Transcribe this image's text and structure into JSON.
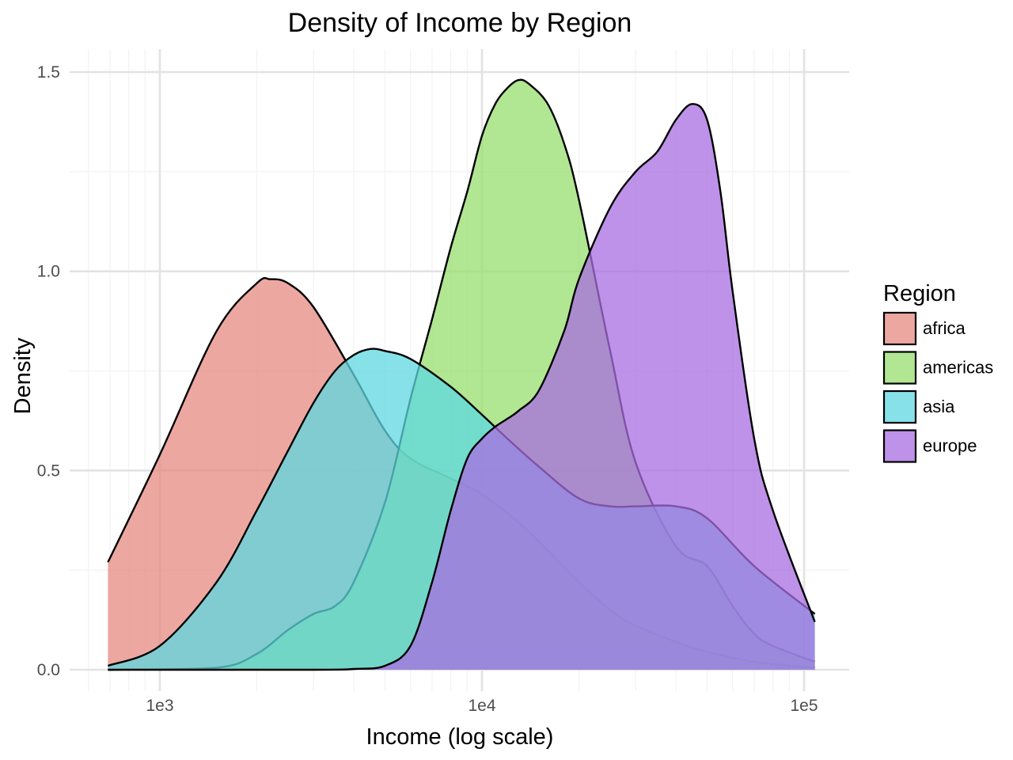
{
  "chart_data": {
    "type": "area",
    "title": "Density of Income by Region",
    "xlabel": "Income (log scale)",
    "ylabel": "Density",
    "x_scale": "log10",
    "xlim": [
      690,
      108000
    ],
    "ylim": [
      0,
      1.5
    ],
    "x_ticks": [
      1000,
      10000,
      100000
    ],
    "x_tick_labels": [
      "1e3",
      "1e4",
      "1e5"
    ],
    "y_ticks": [
      0,
      0.5,
      1.0,
      1.5
    ],
    "y_tick_labels": [
      "0.0",
      "0.5",
      "1.0",
      "1.5"
    ],
    "grid": true,
    "legend": {
      "title": "Region",
      "position": "right"
    },
    "series": [
      {
        "name": "africa",
        "color": "#e58a82",
        "x": [
          690,
          1000,
          1500,
          2000,
          2200,
          2500,
          3000,
          4000,
          5000,
          6000,
          8000,
          10000,
          13000,
          16000,
          20000,
          25000,
          30000,
          40000,
          50000,
          70000,
          108000
        ],
        "y": [
          0.27,
          0.54,
          0.85,
          0.97,
          0.98,
          0.97,
          0.91,
          0.74,
          0.6,
          0.53,
          0.48,
          0.44,
          0.37,
          0.3,
          0.22,
          0.15,
          0.11,
          0.07,
          0.045,
          0.02,
          0.005
        ]
      },
      {
        "name": "americas",
        "color": "#97dd6e",
        "x": [
          690,
          1500,
          2000,
          2500,
          3000,
          3500,
          4000,
          5000,
          6000,
          7000,
          8000,
          9000,
          10000,
          11000,
          12000,
          13000,
          14000,
          16000,
          18000,
          20000,
          25000,
          30000,
          40000,
          50000,
          60000,
          70000,
          80000,
          108000
        ],
        "y": [
          0,
          0.005,
          0.04,
          0.1,
          0.14,
          0.16,
          0.22,
          0.42,
          0.68,
          0.88,
          1.06,
          1.2,
          1.34,
          1.42,
          1.46,
          1.48,
          1.47,
          1.42,
          1.32,
          1.18,
          0.8,
          0.52,
          0.31,
          0.26,
          0.16,
          0.09,
          0.06,
          0.02
        ]
      },
      {
        "name": "asia",
        "color": "#5dd8e0",
        "x": [
          690,
          1000,
          1500,
          2000,
          2500,
          3000,
          3500,
          4000,
          4500,
          5000,
          6000,
          8000,
          10000,
          12000,
          15000,
          20000,
          25000,
          30000,
          40000,
          50000,
          70000,
          108000
        ],
        "y": [
          0.01,
          0.06,
          0.22,
          0.4,
          0.55,
          0.67,
          0.75,
          0.79,
          0.805,
          0.8,
          0.78,
          0.71,
          0.64,
          0.58,
          0.51,
          0.43,
          0.41,
          0.41,
          0.41,
          0.38,
          0.26,
          0.14
        ]
      },
      {
        "name": "europe",
        "color": "#a86ee0",
        "x": [
          690,
          3000,
          4000,
          5000,
          6000,
          7000,
          8000,
          9000,
          10000,
          11000,
          12000,
          13000,
          15000,
          18000,
          20000,
          25000,
          30000,
          35000,
          40000,
          45000,
          50000,
          55000,
          60000,
          70000,
          80000,
          108000
        ],
        "y": [
          0,
          0.0,
          0.002,
          0.01,
          0.06,
          0.22,
          0.4,
          0.53,
          0.58,
          0.61,
          0.63,
          0.65,
          0.7,
          0.85,
          0.98,
          1.16,
          1.25,
          1.3,
          1.38,
          1.42,
          1.38,
          1.2,
          0.95,
          0.58,
          0.4,
          0.12
        ]
      }
    ]
  }
}
